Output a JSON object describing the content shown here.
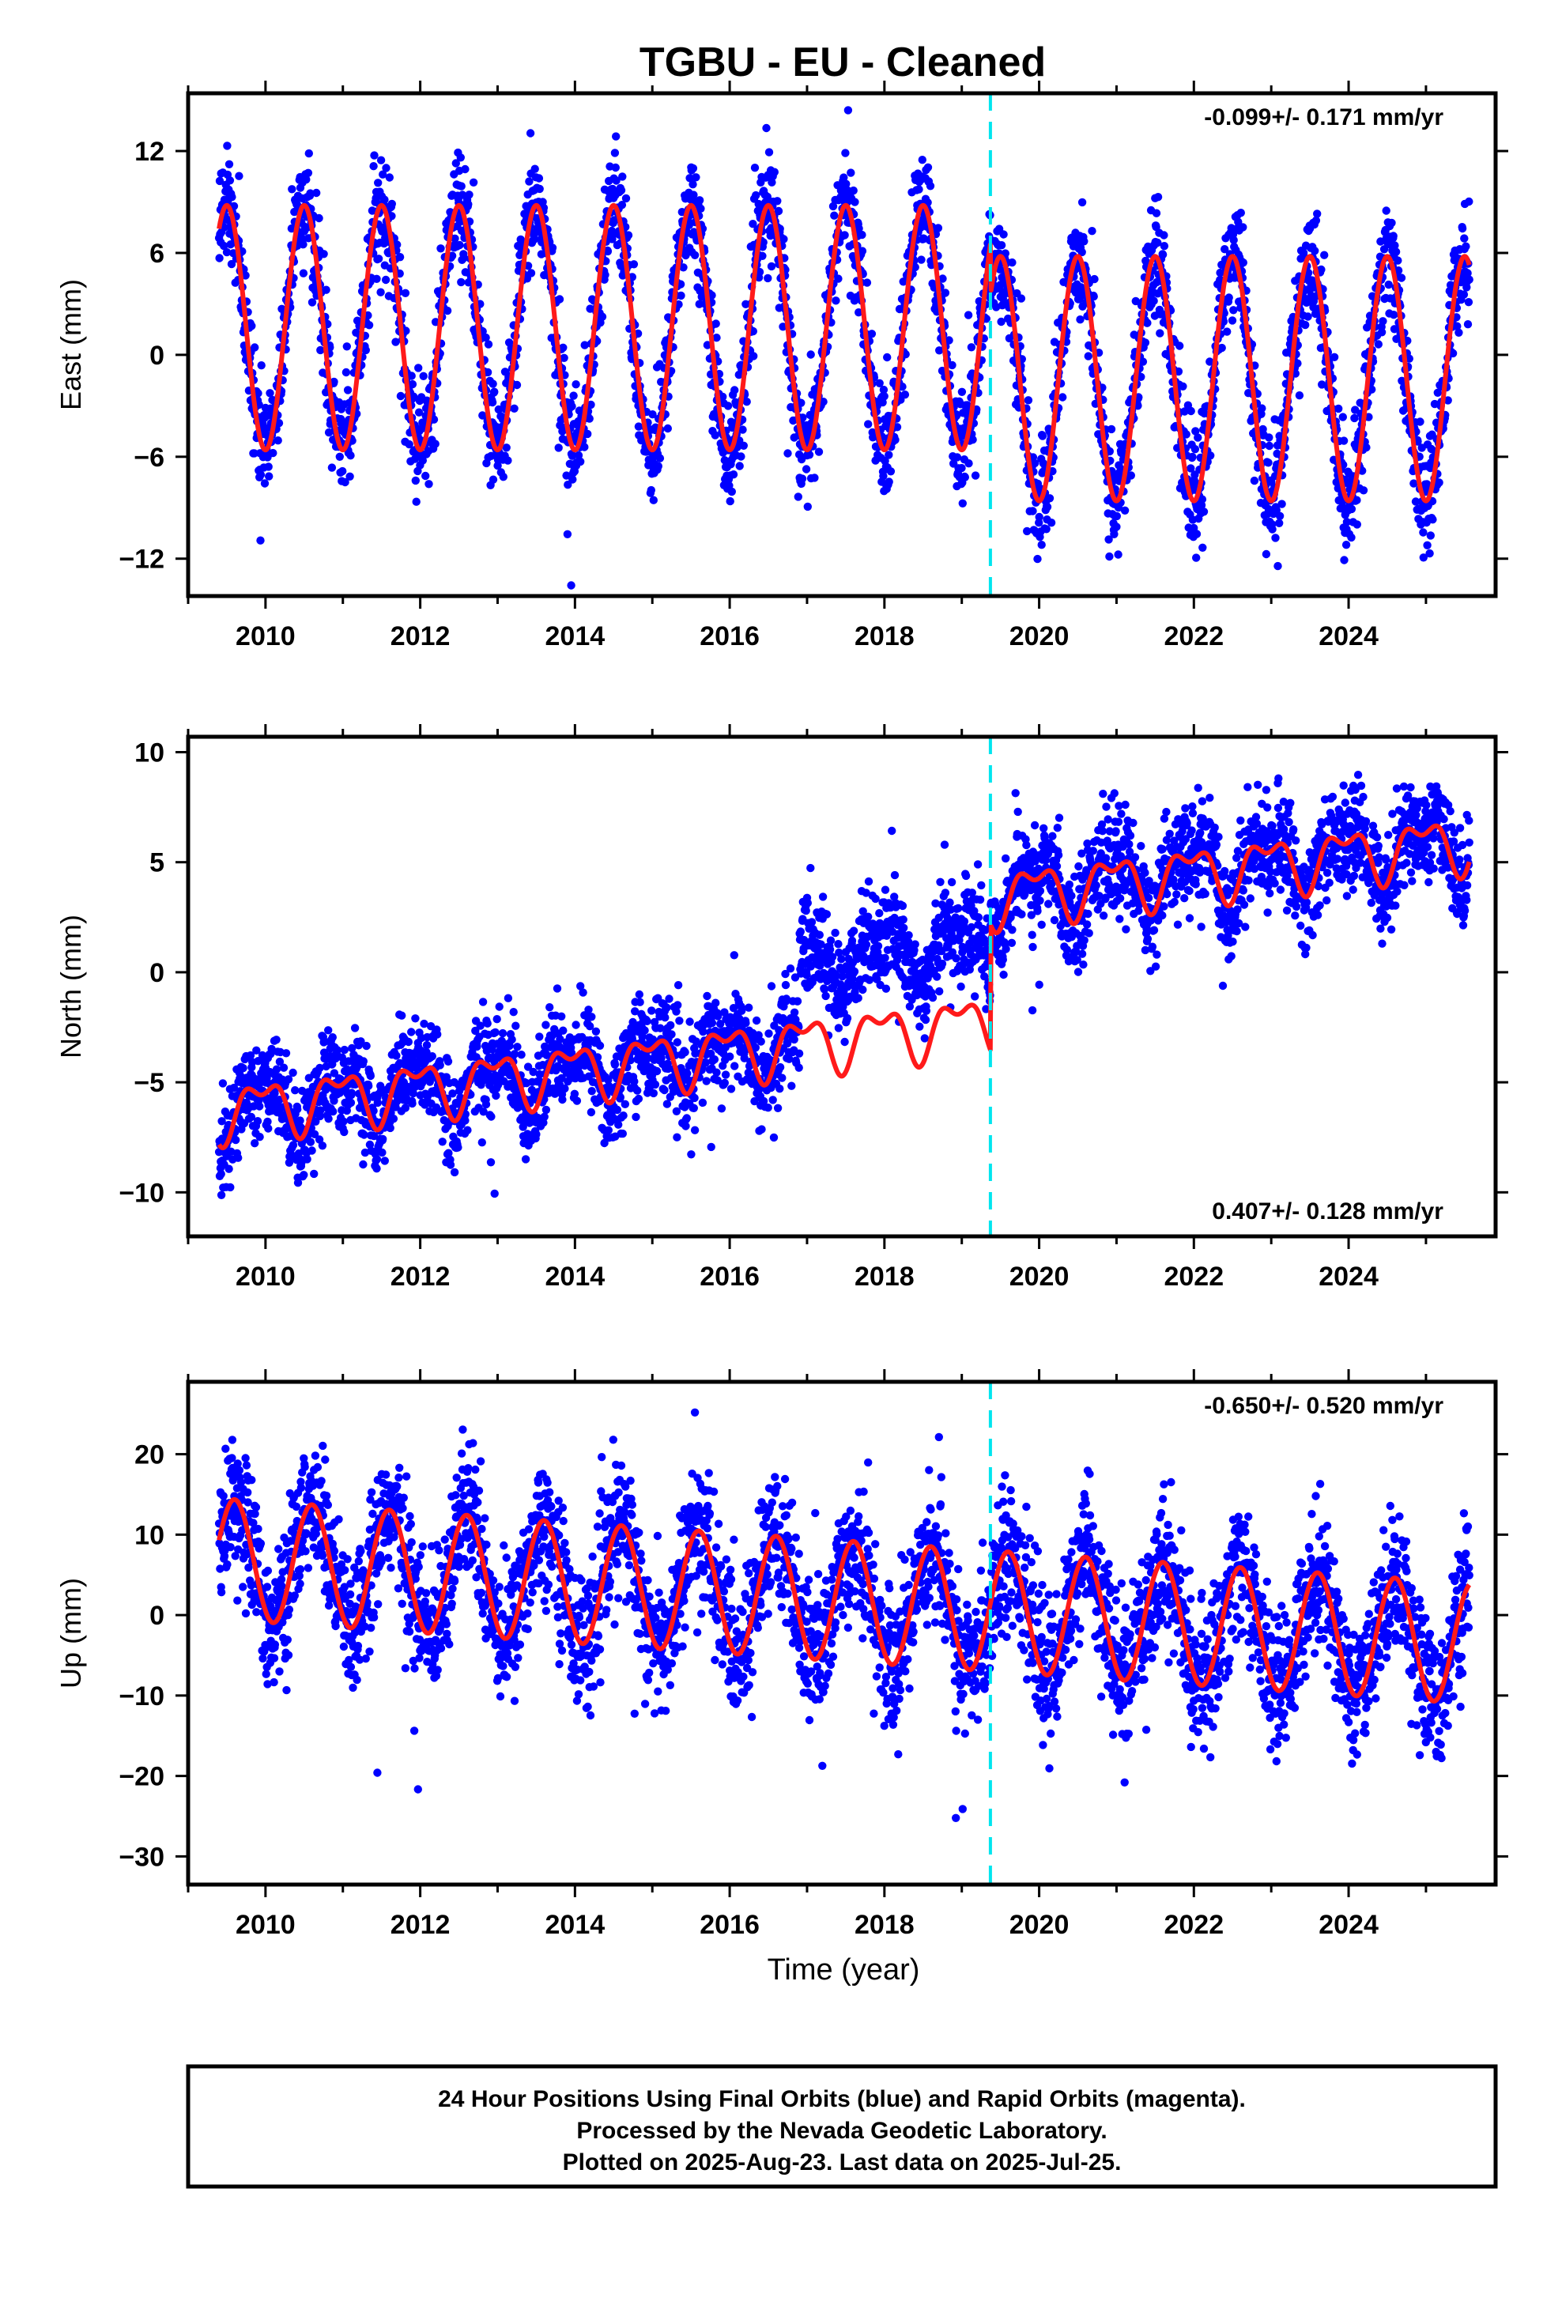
{
  "title": "TGBU  - EU - Cleaned",
  "footer": {
    "lines": [
      "24 Hour Positions Using Final Orbits (blue) and Rapid Orbits (magenta).",
      "Processed by the Nevada Geodetic Laboratory.",
      "Plotted on 2025-Aug-23. Last data on 2025-Jul-25."
    ]
  },
  "colors": {
    "data": "#0000ff",
    "model": "#ff1a1a",
    "event": "#00e5ee"
  },
  "chart_data": [
    {
      "type": "scatter",
      "title": "",
      "ylabel": "East (mm)",
      "xlabel": "",
      "xlim": [
        2009.0,
        2025.9
      ],
      "ylim": [
        -14.2,
        15.4
      ],
      "yticks": [
        -12,
        -6,
        0,
        6,
        12
      ],
      "xticks": [
        2010,
        2012,
        2014,
        2016,
        2018,
        2020,
        2022,
        2024
      ],
      "rate_label": "-0.099+/- 0.171 mm/yr",
      "rate_label_position": "top-right",
      "event_lines": [
        2019.37
      ],
      "series": [
        {
          "kind": "scatter",
          "x_range": [
            2009.4,
            2025.56
          ],
          "model": {
            "offset_before": 1.6,
            "offset_after": -1.4,
            "break": 2019.37,
            "annual_amp": 7.2,
            "annual_phase_peak": 2009.5,
            "semi_amp": 0.0
          },
          "scatter_sd": 1.6
        },
        {
          "kind": "line",
          "x_range": [
            2009.4,
            2025.56
          ],
          "model": {
            "offset_before": 1.6,
            "offset_after": -1.4,
            "break": 2019.37,
            "annual_amp": 7.2,
            "annual_phase_peak": 2009.5,
            "semi_amp": 0.0
          }
        }
      ]
    },
    {
      "type": "scatter",
      "title": "",
      "ylabel": "North (mm)",
      "xlabel": "",
      "xlim": [
        2009.0,
        2025.9
      ],
      "ylim": [
        -12.0,
        10.7
      ],
      "yticks": [
        -10,
        -5,
        0,
        5,
        10
      ],
      "xticks": [
        2010,
        2012,
        2014,
        2016,
        2018,
        2020,
        2022,
        2024
      ],
      "rate_label": "0.407+/- 0.128 mm/yr",
      "rate_label_position": "bottom-right",
      "event_lines": [
        2019.37
      ],
      "series": [
        {
          "kind": "scatter",
          "x_range": [
            2009.4,
            2025.56
          ],
          "model": {
            "base_2009": -6.3,
            "trend": 0.407,
            "break": 2019.37,
            "jump": 5.7,
            "annual_amp": 1.1,
            "semi_amp": 0.6
          },
          "data_step": {
            "start": 2016.9,
            "end": 2019.37,
            "shift": 3.6
          },
          "scatter_sd": 1.1
        },
        {
          "kind": "line",
          "x_range": [
            2009.4,
            2025.56
          ],
          "model": {
            "base_2009": -6.3,
            "trend": 0.407,
            "break": 2019.37,
            "jump": 5.7,
            "annual_amp": 1.1,
            "semi_amp": 0.6
          }
        }
      ]
    },
    {
      "type": "scatter",
      "title": "",
      "ylabel": "Up (mm)",
      "xlabel": "Time (year)",
      "xlim": [
        2009.0,
        2025.9
      ],
      "ylim": [
        -33.5,
        29.0
      ],
      "yticks": [
        -30,
        -20,
        -10,
        0,
        10,
        20
      ],
      "xticks": [
        2010,
        2012,
        2014,
        2016,
        2018,
        2020,
        2022,
        2024
      ],
      "rate_label": "-0.650+/- 0.520 mm/yr",
      "rate_label_position": "top-right",
      "event_lines": [
        2019.37
      ],
      "series": [
        {
          "kind": "scatter",
          "x_range": [
            2009.4,
            2025.56
          ],
          "model": {
            "base_2009": 7.0,
            "trend": -0.65,
            "break": 2019.37,
            "jump": 0.0,
            "annual_amp": 7.5,
            "annual_phase_peak": 2009.6,
            "semi_amp": 0.0
          },
          "scatter_sd": 4.2
        },
        {
          "kind": "line",
          "x_range": [
            2009.4,
            2025.56
          ],
          "model": {
            "base_2009": 7.0,
            "trend": -0.65,
            "break": 2019.37,
            "jump": 0.0,
            "annual_amp": 7.5,
            "annual_phase_peak": 2009.6,
            "semi_amp": 0.0
          }
        }
      ]
    }
  ]
}
